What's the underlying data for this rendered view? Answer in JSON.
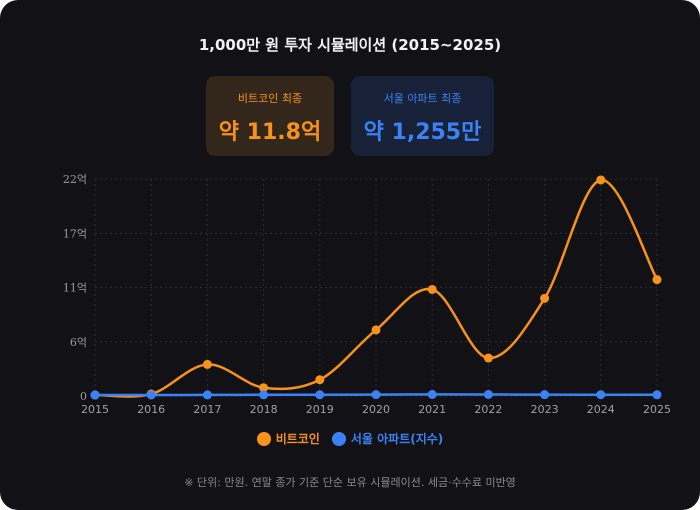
{
  "title": "1,000만 원 투자 시뮬레이션 (2015~2025)",
  "stats": [
    {
      "label": "비트코인 최종",
      "value": "약 11.8억",
      "color": "#f7931a"
    },
    {
      "label": "서울 아파트 최종",
      "value": "약 1,255만",
      "color": "#3b82f6"
    }
  ],
  "note": "※ 단위: 만원. 연말 종가 기준 단순 보유 시뮬레이션. 세금·수수료 미반영",
  "chart_data": {
    "type": "line",
    "title": "1,000만 원 투자 시뮬레이션 (2015~2025)",
    "x": [
      "2015",
      "2016",
      "2017",
      "2018",
      "2019",
      "2020",
      "2021",
      "2022",
      "2023",
      "2024",
      "2025"
    ],
    "ylim": [
      0,
      220000
    ],
    "yticks": [
      0,
      55000,
      110000,
      165000,
      220000
    ],
    "ytick_labels": [
      "0",
      "6억",
      "11억",
      "17억",
      "22억"
    ],
    "grid": true,
    "smooth": true,
    "legend_position": "bottom",
    "series": [
      {
        "name": "비트코인",
        "color": "#f7931a",
        "values": [
          1000,
          2000,
          32000,
          8400,
          16500,
          67000,
          108000,
          38500,
          99000,
          219000,
          118000
        ]
      },
      {
        "name": "서울 아파트(지수)",
        "color": "#3b82f6",
        "values": [
          1000,
          1040,
          1090,
          1230,
          1280,
          1400,
          1620,
          1530,
          1360,
          1300,
          1255
        ]
      }
    ]
  }
}
